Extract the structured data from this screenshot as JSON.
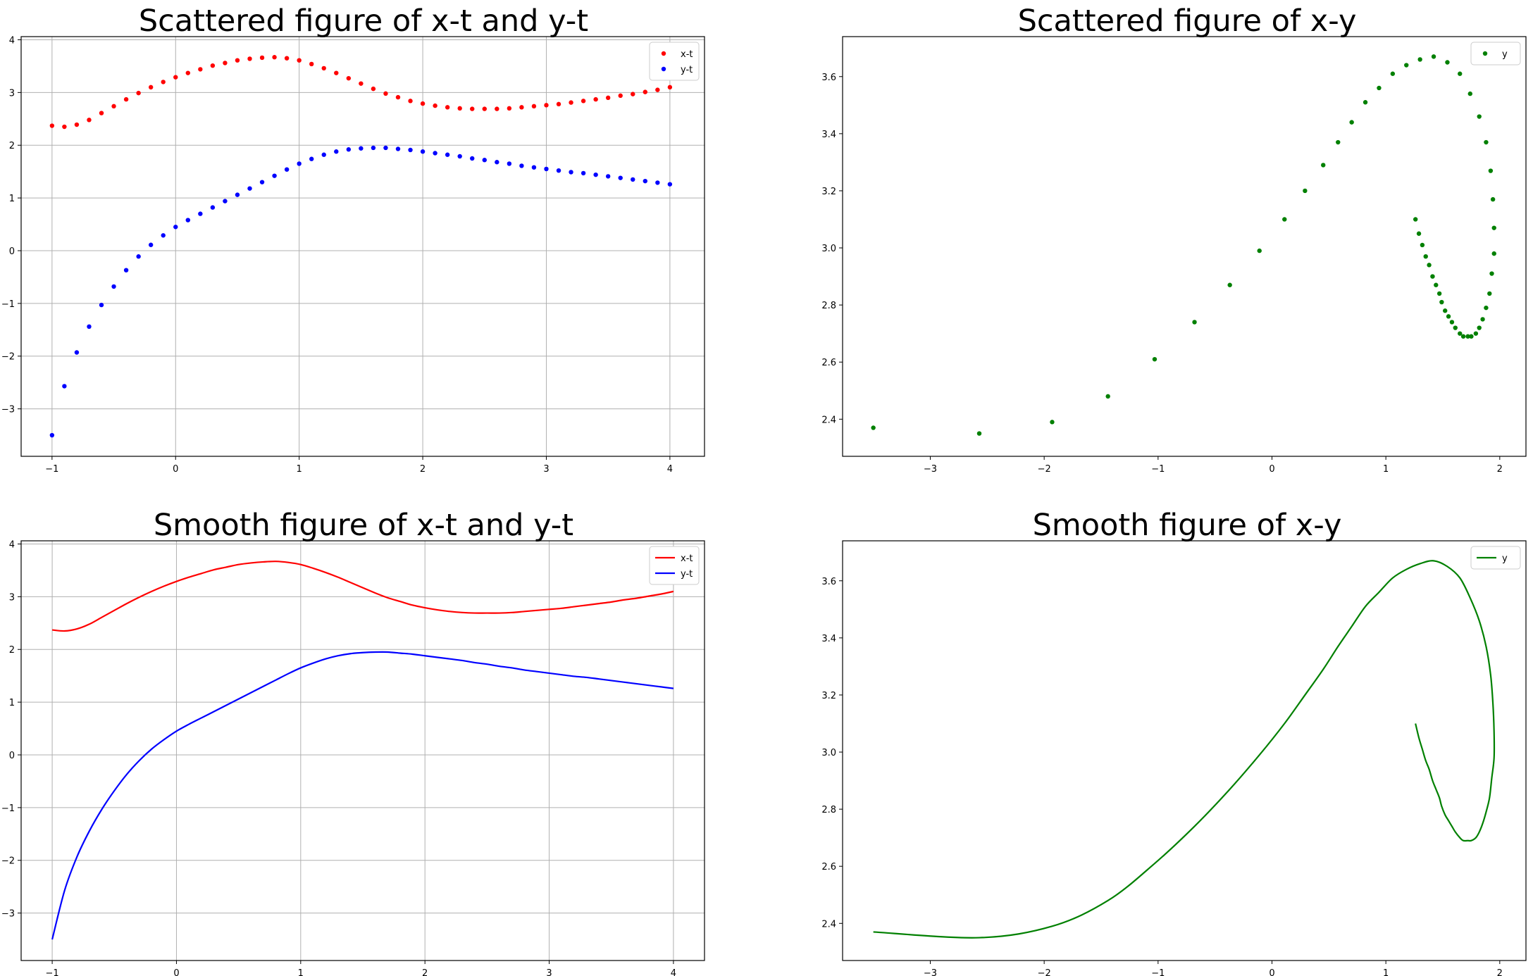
{
  "chart_data": [
    {
      "type": "scatter",
      "title": "Scattered figure of x-t and y-t",
      "xlabel": "",
      "ylabel": "",
      "xlim": [
        -1.25,
        4.28
      ],
      "ylim": [
        -3.9,
        4.06
      ],
      "xticks": [
        -1,
        0,
        1,
        2,
        3,
        4
      ],
      "yticks": [
        -3,
        -2,
        -1,
        0,
        1,
        2,
        3,
        4
      ],
      "grid": true,
      "legend": "top-right",
      "series": [
        {
          "name": "x-t",
          "color": "#ff0000",
          "x": [
            -1,
            -0.9,
            -0.8,
            -0.7,
            -0.6,
            -0.5,
            -0.4,
            -0.3,
            -0.2,
            -0.1,
            0,
            0.1,
            0.2,
            0.3,
            0.4,
            0.5,
            0.6,
            0.7,
            0.8,
            0.9,
            1,
            1.1,
            1.2,
            1.3,
            1.4,
            1.5,
            1.6,
            1.7,
            1.8,
            1.9,
            2,
            2.1,
            2.2,
            2.3,
            2.4,
            2.5,
            2.6,
            2.7,
            2.8,
            2.9,
            3,
            3.1,
            3.2,
            3.3,
            3.4,
            3.5,
            3.6,
            3.7,
            3.8,
            3.9,
            4
          ],
          "y": [
            2.37,
            2.35,
            2.39,
            2.48,
            2.61,
            2.74,
            2.87,
            2.99,
            3.1,
            3.2,
            3.29,
            3.37,
            3.44,
            3.51,
            3.56,
            3.61,
            3.64,
            3.66,
            3.67,
            3.65,
            3.61,
            3.54,
            3.46,
            3.37,
            3.27,
            3.17,
            3.07,
            2.98,
            2.91,
            2.84,
            2.79,
            2.75,
            2.72,
            2.7,
            2.69,
            2.69,
            2.69,
            2.7,
            2.72,
            2.74,
            2.76,
            2.78,
            2.81,
            2.84,
            2.87,
            2.9,
            2.94,
            2.97,
            3.01,
            3.05,
            3.1
          ]
        },
        {
          "name": "y-t",
          "color": "#0000ff",
          "x": [
            -1,
            -0.9,
            -0.8,
            -0.7,
            -0.6,
            -0.5,
            -0.4,
            -0.3,
            -0.2,
            -0.1,
            0,
            0.1,
            0.2,
            0.3,
            0.4,
            0.5,
            0.6,
            0.7,
            0.8,
            0.9,
            1,
            1.1,
            1.2,
            1.3,
            1.4,
            1.5,
            1.6,
            1.7,
            1.8,
            1.9,
            2,
            2.1,
            2.2,
            2.3,
            2.4,
            2.5,
            2.6,
            2.7,
            2.8,
            2.9,
            3,
            3.1,
            3.2,
            3.3,
            3.4,
            3.5,
            3.6,
            3.7,
            3.8,
            3.9,
            4
          ],
          "y": [
            -3.5,
            -2.57,
            -1.93,
            -1.44,
            -1.03,
            -0.68,
            -0.37,
            -0.11,
            0.11,
            0.29,
            0.45,
            0.58,
            0.7,
            0.82,
            0.94,
            1.06,
            1.18,
            1.3,
            1.42,
            1.54,
            1.65,
            1.74,
            1.82,
            1.88,
            1.92,
            1.94,
            1.95,
            1.95,
            1.93,
            1.91,
            1.88,
            1.85,
            1.82,
            1.79,
            1.75,
            1.72,
            1.68,
            1.65,
            1.61,
            1.58,
            1.55,
            1.52,
            1.49,
            1.47,
            1.44,
            1.41,
            1.38,
            1.35,
            1.32,
            1.29,
            1.26
          ]
        }
      ]
    },
    {
      "type": "scatter",
      "title": "Scattered figure of x-y",
      "xlabel": "",
      "ylabel": "",
      "xlim": [
        -3.77,
        2.23
      ],
      "ylim": [
        2.27,
        3.74
      ],
      "xticks": [
        -3,
        -2,
        -1,
        0,
        1,
        2
      ],
      "yticks": [
        2.4,
        2.6,
        2.8,
        3.0,
        3.2,
        3.4,
        3.6
      ],
      "tick_labels_y": [
        "2.4",
        "2.6",
        "2.8",
        "3.0",
        "3.2",
        "3.4",
        "3.6"
      ],
      "grid": false,
      "legend": "top-right",
      "series": [
        {
          "name": "y",
          "color": "#008000",
          "x": [
            -3.5,
            -2.57,
            -1.93,
            -1.44,
            -1.03,
            -0.68,
            -0.37,
            -0.11,
            0.11,
            0.29,
            0.45,
            0.58,
            0.7,
            0.82,
            0.94,
            1.06,
            1.18,
            1.3,
            1.42,
            1.54,
            1.65,
            1.74,
            1.82,
            1.88,
            1.92,
            1.94,
            1.95,
            1.95,
            1.93,
            1.91,
            1.88,
            1.85,
            1.82,
            1.79,
            1.75,
            1.72,
            1.68,
            1.65,
            1.61,
            1.58,
            1.55,
            1.52,
            1.49,
            1.47,
            1.44,
            1.41,
            1.38,
            1.35,
            1.32,
            1.29,
            1.26
          ],
          "y": [
            2.37,
            2.35,
            2.39,
            2.48,
            2.61,
            2.74,
            2.87,
            2.99,
            3.1,
            3.2,
            3.29,
            3.37,
            3.44,
            3.51,
            3.56,
            3.61,
            3.64,
            3.66,
            3.67,
            3.65,
            3.61,
            3.54,
            3.46,
            3.37,
            3.27,
            3.17,
            3.07,
            2.98,
            2.91,
            2.84,
            2.79,
            2.75,
            2.72,
            2.7,
            2.69,
            2.69,
            2.69,
            2.7,
            2.72,
            2.74,
            2.76,
            2.78,
            2.81,
            2.84,
            2.87,
            2.9,
            2.94,
            2.97,
            3.01,
            3.05,
            3.1
          ]
        }
      ]
    },
    {
      "type": "line",
      "title": "Smooth figure of x-t and y-t",
      "xlabel": "",
      "ylabel": "",
      "xlim": [
        -1.25,
        4.25
      ],
      "ylim": [
        -3.9,
        4.06
      ],
      "xticks": [
        -1,
        0,
        1,
        2,
        3,
        4
      ],
      "yticks": [
        -3,
        -2,
        -1,
        0,
        1,
        2,
        3,
        4
      ],
      "grid": true,
      "legend": "top-right",
      "series": [
        {
          "name": "x-t",
          "color": "#ff0000",
          "x": [
            -1,
            -0.9,
            -0.8,
            -0.7,
            -0.6,
            -0.5,
            -0.4,
            -0.3,
            -0.2,
            -0.1,
            0,
            0.1,
            0.2,
            0.3,
            0.4,
            0.5,
            0.6,
            0.7,
            0.8,
            0.9,
            1,
            1.1,
            1.2,
            1.3,
            1.4,
            1.5,
            1.6,
            1.7,
            1.8,
            1.9,
            2,
            2.1,
            2.2,
            2.3,
            2.4,
            2.5,
            2.6,
            2.7,
            2.8,
            2.9,
            3,
            3.1,
            3.2,
            3.3,
            3.4,
            3.5,
            3.6,
            3.7,
            3.8,
            3.9,
            4
          ],
          "y": [
            2.37,
            2.35,
            2.39,
            2.48,
            2.61,
            2.74,
            2.87,
            2.99,
            3.1,
            3.2,
            3.29,
            3.37,
            3.44,
            3.51,
            3.56,
            3.61,
            3.64,
            3.66,
            3.67,
            3.65,
            3.61,
            3.54,
            3.46,
            3.37,
            3.27,
            3.17,
            3.07,
            2.98,
            2.91,
            2.84,
            2.79,
            2.75,
            2.72,
            2.7,
            2.69,
            2.69,
            2.69,
            2.7,
            2.72,
            2.74,
            2.76,
            2.78,
            2.81,
            2.84,
            2.87,
            2.9,
            2.94,
            2.97,
            3.01,
            3.05,
            3.1
          ]
        },
        {
          "name": "y-t",
          "color": "#0000ff",
          "x": [
            -1,
            -0.9,
            -0.8,
            -0.7,
            -0.6,
            -0.5,
            -0.4,
            -0.3,
            -0.2,
            -0.1,
            0,
            0.1,
            0.2,
            0.3,
            0.4,
            0.5,
            0.6,
            0.7,
            0.8,
            0.9,
            1,
            1.1,
            1.2,
            1.3,
            1.4,
            1.5,
            1.6,
            1.7,
            1.8,
            1.9,
            2,
            2.1,
            2.2,
            2.3,
            2.4,
            2.5,
            2.6,
            2.7,
            2.8,
            2.9,
            3,
            3.1,
            3.2,
            3.3,
            3.4,
            3.5,
            3.6,
            3.7,
            3.8,
            3.9,
            4
          ],
          "y": [
            -3.5,
            -2.57,
            -1.93,
            -1.44,
            -1.03,
            -0.68,
            -0.37,
            -0.11,
            0.11,
            0.29,
            0.45,
            0.58,
            0.7,
            0.82,
            0.94,
            1.06,
            1.18,
            1.3,
            1.42,
            1.54,
            1.65,
            1.74,
            1.82,
            1.88,
            1.92,
            1.94,
            1.95,
            1.95,
            1.93,
            1.91,
            1.88,
            1.85,
            1.82,
            1.79,
            1.75,
            1.72,
            1.68,
            1.65,
            1.61,
            1.58,
            1.55,
            1.52,
            1.49,
            1.47,
            1.44,
            1.41,
            1.38,
            1.35,
            1.32,
            1.29,
            1.26
          ]
        }
      ]
    },
    {
      "type": "line",
      "title": "Smooth figure of x-y",
      "xlabel": "",
      "ylabel": "",
      "xlim": [
        -3.77,
        2.23
      ],
      "ylim": [
        2.27,
        3.74
      ],
      "xticks": [
        -3,
        -2,
        -1,
        0,
        1,
        2
      ],
      "yticks": [
        2.4,
        2.6,
        2.8,
        3.0,
        3.2,
        3.4,
        3.6
      ],
      "tick_labels_y": [
        "2.4",
        "2.6",
        "2.8",
        "3.0",
        "3.2",
        "3.4",
        "3.6"
      ],
      "grid": false,
      "legend": "top-right",
      "series": [
        {
          "name": "y",
          "color": "#008000",
          "x": [
            -3.5,
            -2.57,
            -1.93,
            -1.44,
            -1.03,
            -0.68,
            -0.37,
            -0.11,
            0.11,
            0.29,
            0.45,
            0.58,
            0.7,
            0.82,
            0.94,
            1.06,
            1.18,
            1.3,
            1.42,
            1.54,
            1.65,
            1.74,
            1.82,
            1.88,
            1.92,
            1.94,
            1.95,
            1.95,
            1.93,
            1.91,
            1.88,
            1.85,
            1.82,
            1.79,
            1.75,
            1.72,
            1.68,
            1.65,
            1.61,
            1.58,
            1.55,
            1.52,
            1.49,
            1.47,
            1.44,
            1.41,
            1.38,
            1.35,
            1.32,
            1.29,
            1.26
          ],
          "y": [
            2.37,
            2.35,
            2.39,
            2.48,
            2.61,
            2.74,
            2.87,
            2.99,
            3.1,
            3.2,
            3.29,
            3.37,
            3.44,
            3.51,
            3.56,
            3.61,
            3.64,
            3.66,
            3.67,
            3.65,
            3.61,
            3.54,
            3.46,
            3.37,
            3.27,
            3.17,
            3.07,
            2.98,
            2.91,
            2.84,
            2.79,
            2.75,
            2.72,
            2.7,
            2.69,
            2.69,
            2.69,
            2.7,
            2.72,
            2.74,
            2.76,
            2.78,
            2.81,
            2.84,
            2.87,
            2.9,
            2.94,
            2.97,
            3.01,
            3.05,
            3.1
          ]
        }
      ]
    }
  ]
}
